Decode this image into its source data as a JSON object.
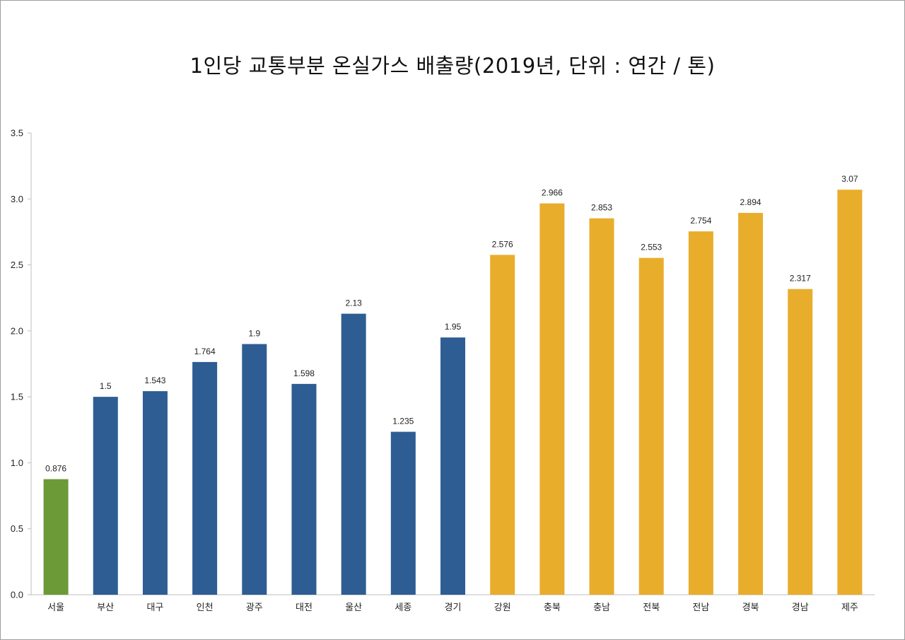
{
  "chart_data": {
    "type": "bar",
    "title": "1인당 교통부분 온실가스 배출량(2019년, 단위 : 연간 / 톤)",
    "xlabel": "",
    "ylabel": "",
    "ylim": [
      0,
      3.5
    ],
    "yticks": [
      "0.0",
      "0.5",
      "1.0",
      "1.5",
      "2.0",
      "2.5",
      "3.0",
      "3.5"
    ],
    "grid": false,
    "legend": "none",
    "categories": [
      "서울",
      "부산",
      "대구",
      "인천",
      "광주",
      "대전",
      "울산",
      "세종",
      "경기",
      "강원",
      "충북",
      "충남",
      "전북",
      "전남",
      "경북",
      "경남",
      "제주"
    ],
    "values": [
      0.876,
      1.5,
      1.543,
      1.764,
      1.9,
      1.598,
      2.13,
      1.235,
      1.95,
      2.576,
      2.966,
      2.853,
      2.553,
      2.754,
      2.894,
      2.317,
      3.07
    ],
    "data_labels": [
      "0.876",
      "1.5",
      "1.543",
      "1.764",
      "1.9",
      "1.598",
      "2.13",
      "1.235",
      "1.95",
      "2.576",
      "2.966",
      "2.853",
      "2.553",
      "2.754",
      "2.894",
      "2.317",
      "3.07"
    ],
    "bar_colors": [
      "#6b9a37",
      "#2e5d94",
      "#2e5d94",
      "#2e5d94",
      "#2e5d94",
      "#2e5d94",
      "#2e5d94",
      "#2e5d94",
      "#2e5d94",
      "#e9ad2c",
      "#e9ad2c",
      "#e9ad2c",
      "#e9ad2c",
      "#e9ad2c",
      "#e9ad2c",
      "#e9ad2c",
      "#e9ad2c"
    ],
    "axis_color": "#bfbfbf"
  }
}
